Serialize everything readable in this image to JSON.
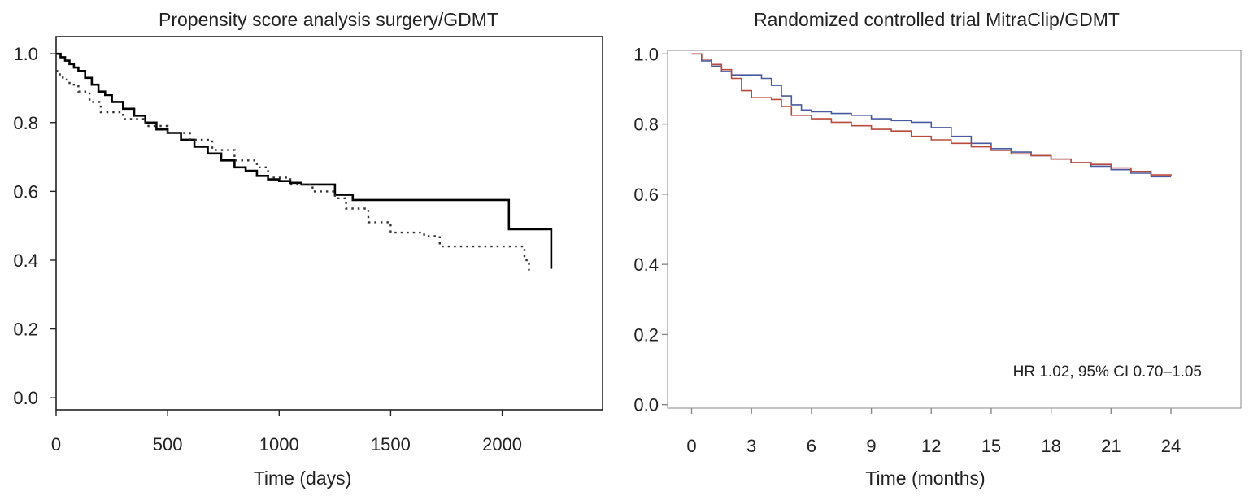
{
  "chart_data": [
    {
      "type": "line",
      "step": true,
      "title": "Propensity score analysis surgery/GDMT",
      "xlabel": "Time (days)",
      "ylabel": "",
      "xlim": [
        0,
        2450
      ],
      "ylim": [
        -0.035,
        1.05
      ],
      "xticks": [
        0,
        500,
        1000,
        1500,
        2000
      ],
      "xtick_labels": [
        "0",
        "500",
        "1000",
        "1500",
        "2000"
      ],
      "yticks": [
        0.0,
        0.2,
        0.4,
        0.6,
        0.8,
        1.0
      ],
      "ytick_labels": [
        "0.0",
        "0.2",
        "0.4",
        "0.6",
        "0.8",
        "1.0"
      ],
      "grid": false,
      "legend": null,
      "series": [
        {
          "style": "solid",
          "color": "#000000",
          "x": [
            0,
            20,
            40,
            60,
            80,
            100,
            130,
            160,
            190,
            220,
            250,
            300,
            350,
            400,
            450,
            500,
            560,
            620,
            680,
            740,
            800,
            850,
            900,
            950,
            1000,
            1050,
            1100,
            1250,
            1280,
            1330,
            2030,
            2220
          ],
          "y": [
            1.0,
            0.99,
            0.98,
            0.97,
            0.96,
            0.95,
            0.93,
            0.91,
            0.89,
            0.88,
            0.86,
            0.84,
            0.82,
            0.8,
            0.78,
            0.77,
            0.75,
            0.73,
            0.71,
            0.69,
            0.67,
            0.66,
            0.645,
            0.635,
            0.63,
            0.625,
            0.62,
            0.59,
            0.59,
            0.575,
            0.49,
            0.375
          ]
        },
        {
          "style": "dotted",
          "color": "#333333",
          "x": [
            0,
            10,
            30,
            60,
            100,
            150,
            200,
            300,
            400,
            500,
            600,
            700,
            800,
            900,
            950,
            1050,
            1150,
            1250,
            1300,
            1400,
            1500,
            1650,
            1720,
            2100,
            2120
          ],
          "y": [
            0.95,
            0.94,
            0.925,
            0.91,
            0.89,
            0.86,
            0.83,
            0.81,
            0.79,
            0.77,
            0.75,
            0.72,
            0.69,
            0.67,
            0.64,
            0.62,
            0.6,
            0.58,
            0.55,
            0.51,
            0.48,
            0.47,
            0.44,
            0.4,
            0.37
          ]
        }
      ]
    },
    {
      "type": "line",
      "step": true,
      "title": "Randomized controlled trial MitraClip/GDMT",
      "xlabel": "Time (months)",
      "ylabel": "",
      "xlim": [
        -1.2,
        27.5
      ],
      "ylim": [
        -0.01,
        1.01
      ],
      "xticks": [
        0,
        3,
        6,
        9,
        12,
        15,
        18,
        21,
        24
      ],
      "xtick_labels": [
        "0",
        "3",
        "6",
        "9",
        "12",
        "15",
        "18",
        "21",
        "24"
      ],
      "yticks": [
        0.0,
        0.2,
        0.4,
        0.6,
        0.8,
        1.0
      ],
      "ytick_labels": [
        "0.0",
        "0.2",
        "0.4",
        "0.6",
        "0.8",
        "1.0"
      ],
      "grid": false,
      "legend": null,
      "annotation": "HR 1.02, 95% CI 0.70–1.05",
      "series": [
        {
          "color": "#4a5aa0",
          "x": [
            0,
            0.5,
            1.0,
            1.5,
            2.0,
            3.0,
            3.5,
            4.0,
            4.5,
            5.0,
            5.5,
            6.0,
            7.0,
            8.0,
            9.0,
            10.0,
            11.0,
            12.0,
            13.0,
            14.0,
            15.0,
            16.0,
            17.0,
            18.0,
            19.0,
            20.0,
            21.0,
            22.0,
            23.0,
            24.0
          ],
          "y": [
            1.0,
            0.98,
            0.965,
            0.95,
            0.94,
            0.94,
            0.93,
            0.91,
            0.88,
            0.855,
            0.84,
            0.835,
            0.83,
            0.825,
            0.815,
            0.81,
            0.805,
            0.79,
            0.765,
            0.745,
            0.73,
            0.72,
            0.71,
            0.7,
            0.69,
            0.68,
            0.67,
            0.66,
            0.65,
            0.65
          ]
        },
        {
          "color": "#b84a3c",
          "x": [
            0,
            0.5,
            1.0,
            1.5,
            2.0,
            2.5,
            3.0,
            4.0,
            4.5,
            5.0,
            6.0,
            7.0,
            8.0,
            9.0,
            10.0,
            11.0,
            12.0,
            13.0,
            14.0,
            15.0,
            16.0,
            17.0,
            18.0,
            19.0,
            20.0,
            21.0,
            22.0,
            23.0,
            24.0
          ],
          "y": [
            1.0,
            0.985,
            0.97,
            0.955,
            0.93,
            0.895,
            0.875,
            0.87,
            0.85,
            0.825,
            0.815,
            0.805,
            0.795,
            0.785,
            0.78,
            0.765,
            0.755,
            0.745,
            0.735,
            0.725,
            0.715,
            0.71,
            0.7,
            0.69,
            0.685,
            0.675,
            0.665,
            0.655,
            0.65
          ]
        }
      ]
    }
  ]
}
